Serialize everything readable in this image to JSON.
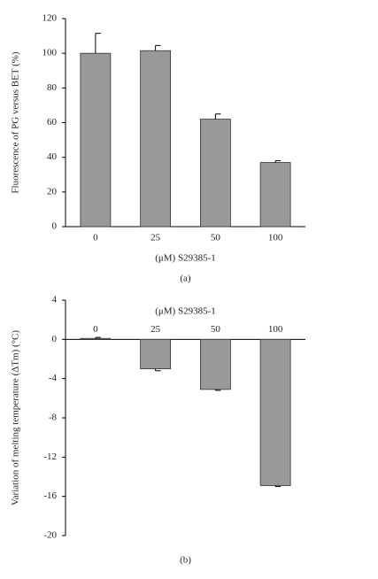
{
  "chart_data": [
    {
      "type": "bar",
      "categories": [
        "0",
        "25",
        "50",
        "100"
      ],
      "values": [
        100,
        101.5,
        62,
        37
      ],
      "errors": [
        11.5,
        3,
        3,
        1
      ],
      "color": "#999999",
      "ylim": [
        0,
        120
      ],
      "yticks": [
        0,
        20,
        40,
        60,
        80,
        100,
        120
      ],
      "x_label": "(μM) S29385-1",
      "y_label": "Fluorescence of PG versus BET (%)",
      "caption": "(a)"
    },
    {
      "type": "bar",
      "categories": [
        "0",
        "25",
        "50",
        "100"
      ],
      "values": [
        0.1,
        -3,
        -5.1,
        -14.9
      ],
      "errors": [
        0.1,
        0.2,
        0.1,
        0.1
      ],
      "color": "#999999",
      "ylim": [
        -20,
        4
      ],
      "yticks": [
        -20,
        -16,
        -12,
        -8,
        -4,
        0,
        4
      ],
      "x_label": "(μM) S29385-1",
      "y_label": "Variation of melting temperature (ΔTm) (°C)",
      "caption": "(b)"
    }
  ]
}
